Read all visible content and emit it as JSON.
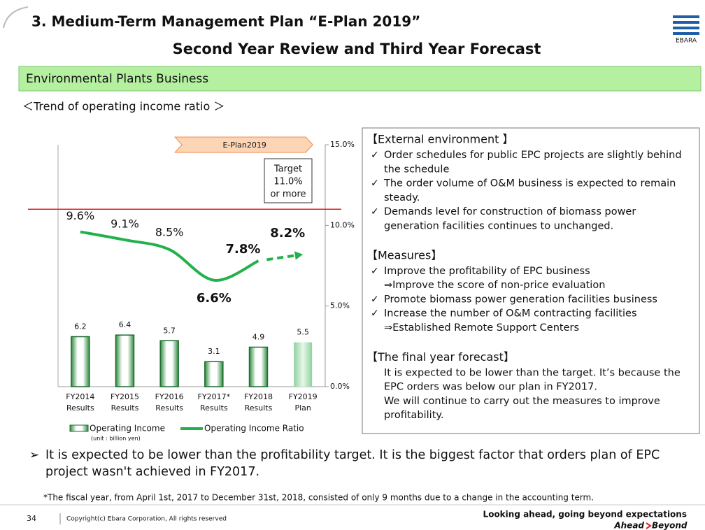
{
  "header": {
    "title": "3. Medium-Term Management Plan “E-Plan 2019”",
    "subtitle": "Second Year Review and Third Year Forecast",
    "logo": "EBARA"
  },
  "section": "Environmental Plants Business",
  "chart_heading": "＜Trend of operating income ratio ＞",
  "chart_data": {
    "type": "combo",
    "categories": [
      "FY2014",
      "FY2015",
      "FY2016",
      "FY2017*",
      "FY2018",
      "FY2019"
    ],
    "category_notes": [
      "Results",
      "Results",
      "Results",
      "Results",
      "Results",
      "Plan"
    ],
    "banner": "E-Plan2019",
    "target": 11,
    "target_label": [
      "Target",
      "11.0%",
      "or more"
    ],
    "ylim": [
      0,
      30
    ],
    "y2lim": [
      0,
      15
    ],
    "y2ticks": [
      {
        "value": 0,
        "label": "0.0%"
      },
      {
        "value": 5,
        "label": "5.0%"
      },
      {
        "value": 10,
        "label": "10.0%"
      },
      {
        "value": 15,
        "label": "15.0%"
      }
    ],
    "series": [
      {
        "name": "Operating Income",
        "type": "bar",
        "color": "#1e6b30",
        "values": [
          6.2,
          6.4,
          5.7,
          3.1,
          4.9,
          5.5
        ]
      },
      {
        "name": "Operating Income Ratio",
        "type": "line",
        "axis": "y2",
        "color": "#22b14c",
        "values": [
          9.6,
          9.1,
          8.5,
          6.6,
          7.8,
          8.2
        ],
        "value_labels": [
          "9.6%",
          "9.1%",
          "8.5%",
          "6.6%",
          "7.8%",
          "8.2%"
        ]
      }
    ],
    "unit_note": "(unit : billion yen)"
  },
  "panel": {
    "sections": [
      {
        "heading": "【External environment 】",
        "items": [
          [
            "Order schedules for public EPC projects are slightly behind",
            "the schedule"
          ],
          [
            "The order volume of O&M business is expected to remain",
            "steady."
          ],
          [
            "Demands level for construction of biomass power",
            "generation facilities continues to unchanged."
          ]
        ]
      },
      {
        "heading": "【Measures】",
        "items": [
          [
            "Improve the profitability of EPC business",
            "⇒Improve the score of non-price evaluation"
          ],
          [
            "Promote biomass power generation facilities business"
          ],
          [
            "Increase the number of O&M contracting facilities",
            "⇒Established Remote Support Centers"
          ]
        ]
      },
      {
        "heading": "【The final year forecast】",
        "paragraph": [
          "It is expected to be lower than the target. It’s because the",
          "EPC orders was below our plan in FY2017.",
          "We will continue to carry out the measures to improve",
          "profitability."
        ]
      }
    ]
  },
  "conclusion": [
    "It is expected to be lower than the profitability target. It is the biggest factor that orders plan of EPC",
    "project wasn't achieved in FY2017."
  ],
  "footnote": "*The fiscal year, from April 1st, 2017 to December 31st, 2018, consisted of only 9 months due to a change in the accounting term.",
  "footer": {
    "page": "34",
    "copyright": "Copyright(c) Ebara Corporation, All rights reserved",
    "tagline": "Looking ahead, going beyond expectations",
    "brand": [
      "Ahead",
      "Beyond"
    ]
  }
}
